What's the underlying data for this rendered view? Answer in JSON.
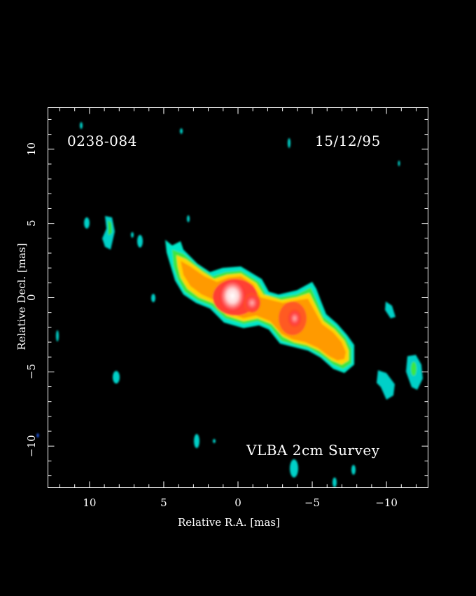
{
  "source_name": "0238-084",
  "epoch": "15/12/95",
  "survey": "VLBA 2cm Survey",
  "x_axis": {
    "label": "Relative R.A. [mas]",
    "ticks": [
      "10",
      "5",
      "0",
      "−5",
      "−10"
    ],
    "tick_values": [
      10,
      5,
      0,
      -5,
      -10
    ],
    "range": [
      12.8,
      -12.8
    ]
  },
  "y_axis": {
    "label": "Relative Decl. [mas]",
    "ticks": [
      "10",
      "5",
      "0",
      "−5",
      "−10"
    ],
    "tick_values": [
      10,
      5,
      0,
      -5,
      -10
    ],
    "range": [
      -12.8,
      12.8
    ]
  },
  "colors": {
    "background": "#000000",
    "frame": "#ffffff",
    "low": "#00e0c0",
    "mid": "#ff9a00",
    "high": "#ff3030",
    "peak": "#ffffff"
  }
}
